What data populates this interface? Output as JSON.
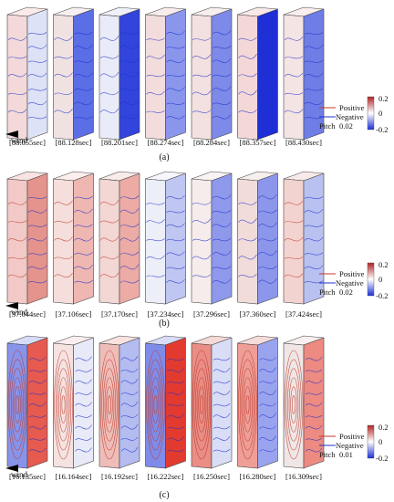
{
  "panels": [
    {
      "label": "(a)",
      "times": [
        "[88.055sec]",
        "[88.128sec]",
        "[88.201sec]",
        "[88.274sec]",
        "[88.284sec]",
        "[88.357sec]",
        "[88.430sec]"
      ],
      "pitch_label": "Pitch",
      "pitch_value": "0.02",
      "colorbar_ticks": [
        "0.2",
        "0",
        "-0.2"
      ],
      "prisms": [
        {
          "front": "#f3d9d9",
          "side": "#dde2f6",
          "top": "#fbeaea",
          "lines": "blue"
        },
        {
          "front": "#f1e2e2",
          "side": "#5c6ee6",
          "top": "#f6f0f0",
          "lines": "blue"
        },
        {
          "front": "#e9ecf8",
          "side": "#3144dc",
          "top": "#eef0fa",
          "lines": "blue"
        },
        {
          "front": "#f2dcdc",
          "side": "#8a96ec",
          "top": "#f7ecec",
          "lines": "blue"
        },
        {
          "front": "#f3e0e0",
          "side": "#7d8ae9",
          "top": "#f7eeee",
          "lines": "blue"
        },
        {
          "front": "#f4d8d8",
          "side": "#1e2fd6",
          "top": "#f8e8e8",
          "lines": "blue"
        },
        {
          "front": "#f4e4e4",
          "side": "#6f7de7",
          "top": "#f9eeee",
          "lines": "blue"
        }
      ]
    },
    {
      "label": "(b)",
      "times": [
        "[37.044sec]",
        "[37.106sec]",
        "[37.170sec]",
        "[37.234sec]",
        "[37.296sec]",
        "[37.360sec]",
        "[37.424sec]"
      ],
      "pitch_label": "Pitch",
      "pitch_value": "0.02",
      "colorbar_ticks": [
        "0.2",
        "0",
        "-0.2"
      ],
      "prisms": [
        {
          "front": "#f2c9c6",
          "side": "#e5938d",
          "top": "#f8e3e1",
          "lines": "mixed"
        },
        {
          "front": "#f5dedb",
          "side": "#efb7b2",
          "top": "#fbeeed",
          "lines": "mixed"
        },
        {
          "front": "#f3d7d4",
          "side": "#ecaba5",
          "top": "#f9ebea",
          "lines": "mixed"
        },
        {
          "front": "#eceef8",
          "side": "#bfc6f1",
          "top": "#f6f6fb",
          "lines": "blue"
        },
        {
          "front": "#f5eceb",
          "side": "#8e99ec",
          "top": "#f9f4f4",
          "lines": "blue"
        },
        {
          "front": "#f1dcda",
          "side": "#8c97eb",
          "top": "#f7eeee",
          "lines": "blue"
        },
        {
          "front": "#f3d3d0",
          "side": "#b9c1f0",
          "top": "#f9eaea",
          "lines": "mixed"
        }
      ]
    },
    {
      "label": "(c)",
      "times": [
        "[16.135sec]",
        "[16.164sec]",
        "[16.192sec]",
        "[16.222sec]",
        "[16.250sec]",
        "[16.280sec]",
        "[16.309sec]"
      ],
      "pitch_label": "Pitch",
      "pitch_value": "0.01",
      "colorbar_ticks": [
        "0.2",
        "0",
        "-0.2"
      ],
      "prisms": [
        {
          "front": "#8893ea",
          "side": "#e65a4f",
          "top": "#d6dbf6",
          "lines": "mixed"
        },
        {
          "front": "#f5e3e1",
          "side": "#e8eaf8",
          "top": "#faefee",
          "lines": "mixed"
        },
        {
          "front": "#efbdb8",
          "side": "#b4bcf0",
          "top": "#f7e2e0",
          "lines": "mixed"
        },
        {
          "front": "#7f8be9",
          "side": "#e23a2e",
          "top": "#d8dcf6",
          "lines": "mixed"
        },
        {
          "front": "#e98d85",
          "side": "#d9ddf6",
          "top": "#f5d9d6",
          "lines": "mixed"
        },
        {
          "front": "#ee9e97",
          "side": "#9aa4ee",
          "top": "#f5dcda",
          "lines": "mixed"
        },
        {
          "front": "#f0e6e6",
          "side": "#ed8a82",
          "top": "#f8f0f0",
          "lines": "mixed"
        }
      ]
    }
  ],
  "legend": {
    "positive": "Positive",
    "negative": "Negative"
  },
  "wind_label": "wind",
  "colors": {
    "positive_line": "#c0392b",
    "negative_line": "#2233cc",
    "cbar_top": "#b22222",
    "cbar_mid": "#ffffff",
    "cbar_bottom": "#1a2fd6"
  }
}
